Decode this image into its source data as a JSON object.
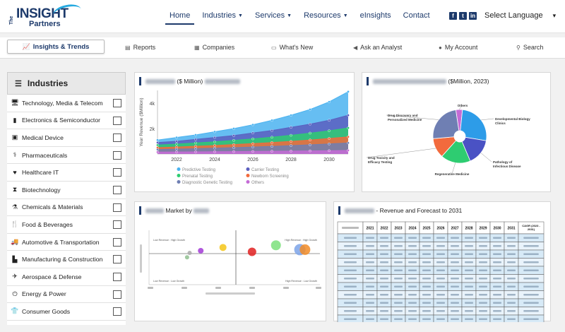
{
  "brand": {
    "the": "The",
    "insight": "INSIGHT",
    "partners": "Partners"
  },
  "nav": {
    "items": [
      {
        "label": "Home",
        "caret": false,
        "active": true
      },
      {
        "label": "Industries",
        "caret": true
      },
      {
        "label": "Services",
        "caret": true
      },
      {
        "label": "Resources",
        "caret": true
      },
      {
        "label": "eInsights",
        "caret": false
      },
      {
        "label": "Contact",
        "caret": false
      }
    ],
    "language": "Select Language"
  },
  "subnav": {
    "active": "Insights & Trends",
    "items": [
      "Reports",
      "Companies",
      "What's New",
      "Ask an Analyst",
      "My Account",
      "Search"
    ]
  },
  "sidebar": {
    "title": "Industries",
    "items": [
      {
        "label": "Technology, Media & Telecom",
        "icon": "monitor-icon"
      },
      {
        "label": "Electronics & Semiconductor",
        "icon": "chip-icon"
      },
      {
        "label": "Medical Device",
        "icon": "medical-kit-icon"
      },
      {
        "label": "Pharmaceuticals",
        "icon": "pills-icon"
      },
      {
        "label": "Healthcare IT",
        "icon": "heart-pulse-icon"
      },
      {
        "label": "Biotechnology",
        "icon": "hourglass-icon"
      },
      {
        "label": "Chemicals & Materials",
        "icon": "flask-icon"
      },
      {
        "label": "Food & Beverages",
        "icon": "fork-knife-icon"
      },
      {
        "label": "Automotive & Transportation",
        "icon": "truck-icon"
      },
      {
        "label": "Manufacturing & Construction",
        "icon": "factory-icon"
      },
      {
        "label": "Aerospace & Defense",
        "icon": "airplane-icon"
      },
      {
        "label": "Energy & Power",
        "icon": "power-icon"
      },
      {
        "label": "Consumer Goods",
        "icon": "tshirt-icon"
      }
    ]
  },
  "panels": {
    "area_title": "($ Million)",
    "pie_title": "($Million, 2023)",
    "bubble_title_a": "Market by",
    "table_title": "- Revenue and Forecast to 2031"
  },
  "chart_data": [
    {
      "type": "area",
      "title": "($ Million)",
      "ylabel": "Year Revenue ($Million)",
      "x": [
        2021,
        2022,
        2023,
        2024,
        2025,
        2026,
        2027,
        2028,
        2029,
        2030,
        2031
      ],
      "ylim": [
        0,
        5000
      ],
      "yticks": [
        "2k",
        "4k"
      ],
      "xticks": [
        2022,
        2024,
        2026,
        2028,
        2030
      ],
      "series": [
        {
          "name": "Predictive Testing",
          "color": "#4bb3f0",
          "values": [
            1100,
            1300,
            1500,
            1750,
            2000,
            2300,
            2650,
            3050,
            3500,
            4100,
            4900
          ]
        },
        {
          "name": "Carrier Testing",
          "color": "#5b5fbf",
          "values": [
            900,
            1000,
            1150,
            1300,
            1450,
            1650,
            1850,
            2100,
            2350,
            2650,
            3050
          ]
        },
        {
          "name": "Prenatal Testing",
          "color": "#2ecc71",
          "values": [
            700,
            780,
            870,
            960,
            1070,
            1190,
            1320,
            1470,
            1640,
            1830,
            2050
          ]
        },
        {
          "name": "Newborn Screening",
          "color": "#f26a3d",
          "values": [
            500,
            550,
            610,
            670,
            740,
            820,
            900,
            990,
            1100,
            1220,
            1350
          ]
        },
        {
          "name": "Diagnostic Genetic Testing",
          "color": "#6f7fb3",
          "values": [
            350,
            380,
            420,
            460,
            500,
            550,
            600,
            660,
            720,
            790,
            870
          ]
        },
        {
          "name": "Others",
          "color": "#c56bd6",
          "values": [
            150,
            160,
            170,
            180,
            190,
            200,
            215,
            230,
            245,
            260,
            280
          ]
        }
      ]
    },
    {
      "type": "pie",
      "title": "($Million, 2023)",
      "slices": [
        {
          "name": "Others",
          "value": 4,
          "color": "#c56bd6"
        },
        {
          "name": "Developmental Biology Clinics",
          "value": 26,
          "color": "#2d9ce8"
        },
        {
          "name": "Pathology of Infectious Disease",
          "value": 16,
          "color": "#4a52c4"
        },
        {
          "name": "Regenerative Medicine",
          "value": 18,
          "color": "#2ecc71"
        },
        {
          "name": "Drug Toxicity and Efficacy Testing",
          "value": 12,
          "color": "#f26a3d"
        },
        {
          "name": "Drug Discovery and Personalized Medicine",
          "value": 24,
          "color": "#6f7fb3"
        }
      ]
    },
    {
      "type": "scatter",
      "title": "Market by",
      "quadrants": [
        "Low Revenue : High Growth",
        "High Revenue : High Growth",
        "Low Revenue : Low Growth",
        "High Revenue : Low Growth"
      ],
      "points": [
        {
          "x": 1.4,
          "y": 2.0,
          "r": 3,
          "color": "#8fbf8f"
        },
        {
          "x": 1.55,
          "y": 2.4,
          "r": 3,
          "color": "#aaaaaa"
        },
        {
          "x": 2.2,
          "y": 2.6,
          "r": 4,
          "color": "#a23ad6"
        },
        {
          "x": 3.5,
          "y": 2.9,
          "r": 5,
          "color": "#f5c518"
        },
        {
          "x": 5.2,
          "y": 2.5,
          "r": 6,
          "color": "#e02020"
        },
        {
          "x": 6.6,
          "y": 3.1,
          "r": 7,
          "color": "#7be07b"
        },
        {
          "x": 8.0,
          "y": 2.7,
          "r": 8,
          "color": "#7da3e8"
        },
        {
          "x": 8.3,
          "y": 2.7,
          "r": 7.5,
          "color": "#f28c28"
        }
      ]
    },
    {
      "type": "table",
      "title": "- Revenue and Forecast to 2031",
      "columns": [
        "",
        "2021",
        "2022",
        "2023",
        "2024",
        "2025",
        "2026",
        "2027",
        "2028",
        "2029",
        "2030",
        "2031",
        "CAGR (2023 - 2031)"
      ],
      "rows": 11
    }
  ]
}
